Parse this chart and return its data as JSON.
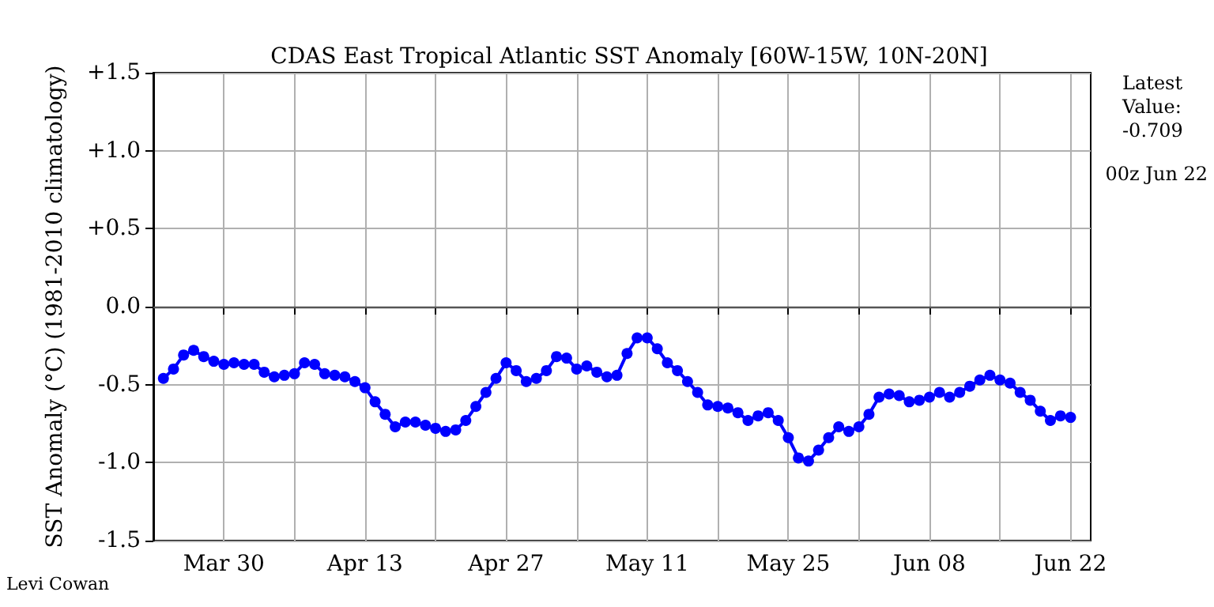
{
  "chart_data": {
    "type": "line",
    "title": "CDAS East Tropical Atlantic SST Anomaly [60W-15W, 10N-20N]",
    "ylabel": "SST Anomaly (°C) (1981-2010 climatology)",
    "annotations": [
      "Latest Value: -0.709",
      "00z Jun 22",
      "Levi Cowan"
    ],
    "x": [
      "--03-24",
      "--03-25",
      "--03-26",
      "--03-27",
      "--03-28",
      "--03-29",
      "--03-30",
      "--03-31",
      "--04-01",
      "--04-02",
      "--04-03",
      "--04-04",
      "--04-05",
      "--04-06",
      "--04-07",
      "--04-08",
      "--04-09",
      "--04-10",
      "--04-11",
      "--04-12",
      "--04-13",
      "--04-14",
      "--04-15",
      "--04-16",
      "--04-17",
      "--04-18",
      "--04-19",
      "--04-20",
      "--04-21",
      "--04-22",
      "--04-23",
      "--04-24",
      "--04-25",
      "--04-26",
      "--04-27",
      "--04-28",
      "--04-29",
      "--04-30",
      "--05-01",
      "--05-02",
      "--05-03",
      "--05-04",
      "--05-05",
      "--05-06",
      "--05-07",
      "--05-08",
      "--05-09",
      "--05-10",
      "--05-11",
      "--05-12",
      "--05-13",
      "--05-14",
      "--05-15",
      "--05-16",
      "--05-17",
      "--05-18",
      "--05-19",
      "--05-20",
      "--05-21",
      "--05-22",
      "--05-23",
      "--05-24",
      "--05-25",
      "--05-26",
      "--05-27",
      "--05-28",
      "--05-29",
      "--05-30",
      "--05-31",
      "--06-01",
      "--06-02",
      "--06-03",
      "--06-04",
      "--06-05",
      "--06-06",
      "--06-07",
      "--06-08",
      "--06-09",
      "--06-10",
      "--06-11",
      "--06-12",
      "--06-13",
      "--06-14",
      "--06-15",
      "--06-16",
      "--06-17",
      "--06-18",
      "--06-19",
      "--06-20",
      "--06-21",
      "--06-22"
    ],
    "series": [
      {
        "color": "#0000ff",
        "values": [
          -0.46,
          -0.4,
          -0.31,
          -0.28,
          -0.32,
          -0.35,
          -0.37,
          -0.36,
          -0.37,
          -0.37,
          -0.42,
          -0.45,
          -0.44,
          -0.43,
          -0.36,
          -0.37,
          -0.43,
          -0.44,
          -0.45,
          -0.48,
          -0.52,
          -0.61,
          -0.69,
          -0.77,
          -0.74,
          -0.74,
          -0.76,
          -0.78,
          -0.8,
          -0.79,
          -0.73,
          -0.64,
          -0.55,
          -0.46,
          -0.36,
          -0.41,
          -0.48,
          -0.46,
          -0.41,
          -0.32,
          -0.33,
          -0.4,
          -0.38,
          -0.42,
          -0.45,
          -0.44,
          -0.3,
          -0.2,
          -0.2,
          -0.27,
          -0.36,
          -0.41,
          -0.48,
          -0.55,
          -0.63,
          -0.64,
          -0.65,
          -0.68,
          -0.73,
          -0.7,
          -0.68,
          -0.73,
          -0.84,
          -0.97,
          -0.99,
          -0.92,
          -0.84,
          -0.77,
          -0.8,
          -0.77,
          -0.69,
          -0.58,
          -0.56,
          -0.57,
          -0.61,
          -0.6,
          -0.58,
          -0.55,
          -0.58,
          -0.55,
          -0.51,
          -0.47,
          -0.44,
          -0.47,
          -0.49,
          -0.55,
          -0.6,
          -0.67,
          -0.73,
          -0.7,
          -0.71
        ]
      }
    ],
    "xlim": [
      "--03-23",
      "--06-24"
    ],
    "xticks": [
      {
        "value": "--03-23",
        "label": null
      },
      {
        "value": "--03-30",
        "label": "Mar 30"
      },
      {
        "value": "--04-06",
        "label": null
      },
      {
        "value": "--04-13",
        "label": "Apr 13"
      },
      {
        "value": "--04-20",
        "label": null
      },
      {
        "value": "--04-27",
        "label": "Apr 27"
      },
      {
        "value": "--05-04",
        "label": null
      },
      {
        "value": "--05-11",
        "label": "May 11"
      },
      {
        "value": "--05-18",
        "label": null
      },
      {
        "value": "--05-25",
        "label": "May 25"
      },
      {
        "value": "--06-01",
        "label": null
      },
      {
        "value": "--06-08",
        "label": "Jun 08"
      },
      {
        "value": "--06-15",
        "label": null
      },
      {
        "value": "--06-22",
        "label": "Jun 22"
      }
    ],
    "ylim": [
      -1.5,
      1.5
    ],
    "yticks": [
      {
        "value": -1.5,
        "label": "-1.5"
      },
      {
        "value": -1.0,
        "label": "-1.0"
      },
      {
        "value": -0.5,
        "label": "-0.5"
      },
      {
        "value": 0,
        "label": "0.0"
      },
      {
        "value": 0.5,
        "label": "+0.5"
      },
      {
        "value": 1.0,
        "label": "+1.0"
      },
      {
        "value": 1.5,
        "label": "+1.5"
      }
    ],
    "ref_lines": [
      {
        "axis": "y",
        "value": 0,
        "color": "#555555"
      }
    ],
    "grid": true,
    "marker": "circle",
    "line_style": "solid"
  }
}
